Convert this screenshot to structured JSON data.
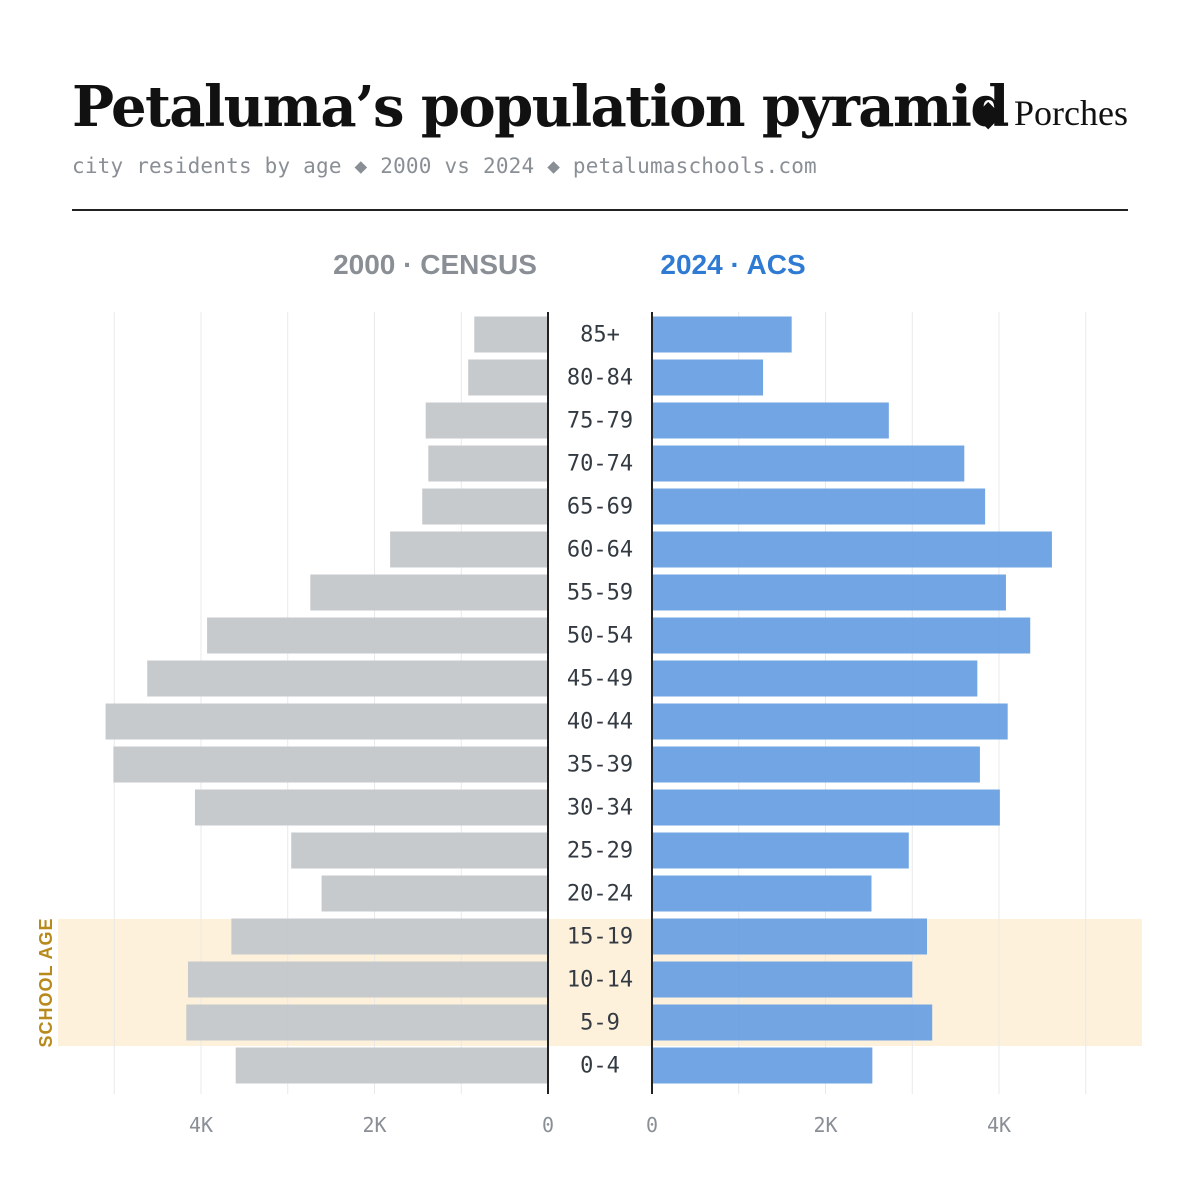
{
  "header": {
    "title": "Petaluma’s population pyramid",
    "subtitle": "city residents by age ◆ 2000 vs 2024 ◆ petalumaschools.com",
    "brand_icon": "◆",
    "brand_name": "Porches"
  },
  "chart_data": {
    "type": "bar",
    "orientation": "horizontal-pyramid",
    "categories": [
      "85+",
      "80-84",
      "75-79",
      "70-74",
      "65-69",
      "60-64",
      "55-59",
      "50-54",
      "45-49",
      "40-44",
      "35-39",
      "30-34",
      "25-29",
      "20-24",
      "15-19",
      "10-14",
      "5-9",
      "0-4"
    ],
    "series": [
      {
        "name": "2000 · CENSUS",
        "side": "left",
        "color": "#c4c7ca",
        "values": [
          850,
          920,
          1410,
          1380,
          1450,
          1820,
          2740,
          3930,
          4620,
          5100,
          5010,
          4070,
          2960,
          2610,
          3650,
          4150,
          4170,
          3600
        ]
      },
      {
        "name": "2024 · ACS",
        "side": "right",
        "color": "#6aa0e2",
        "values": [
          1610,
          1280,
          2730,
          3600,
          3840,
          4610,
          4080,
          4360,
          3750,
          4100,
          3780,
          4010,
          2960,
          2530,
          3170,
          3000,
          3230,
          2540
        ]
      }
    ],
    "header_colors": {
      "left": "#8a8f96",
      "right": "#2f7ad3"
    },
    "x_ticks_left": [
      "4K",
      "2K",
      "0"
    ],
    "x_ticks_right": [
      "0",
      "2K",
      "4K"
    ],
    "xlim": [
      0,
      5000
    ],
    "grid": true,
    "highlight": {
      "label": "SCHOOL AGE",
      "categories": [
        "15-19",
        "10-14",
        "5-9"
      ],
      "color": "#fdf1dc",
      "label_color": "#b88a1c"
    }
  }
}
